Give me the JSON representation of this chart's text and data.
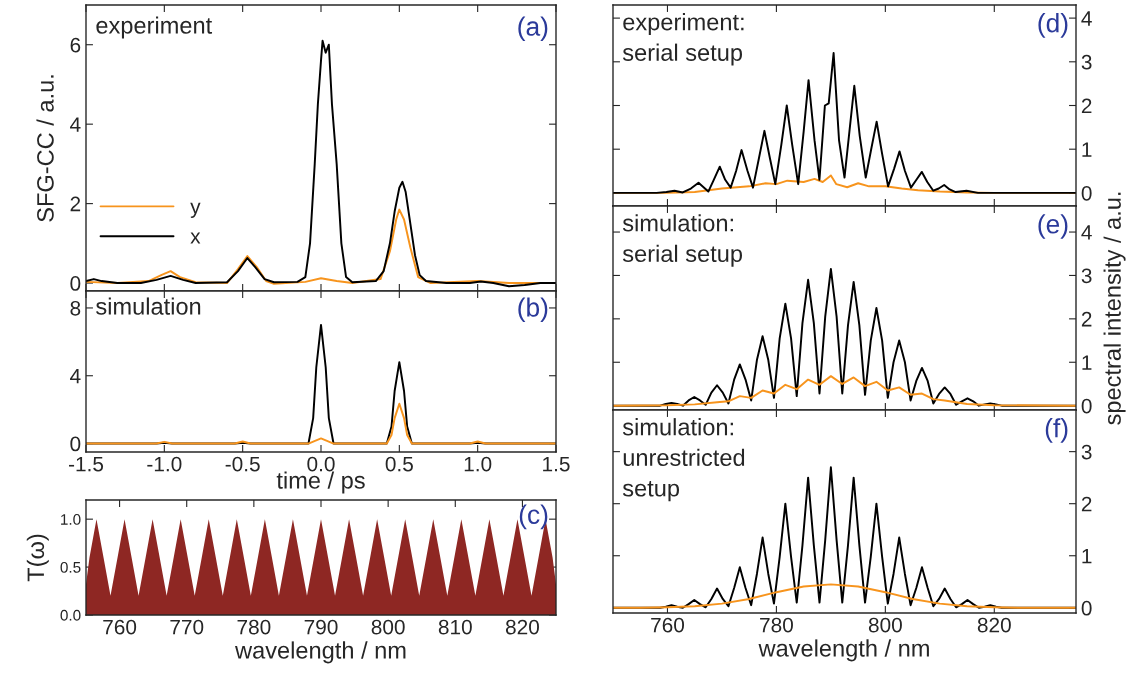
{
  "chart_data": [
    {
      "type": "line",
      "ylabel": "SFG-CC / a.u.",
      "annotations": [
        "experiment",
        "(a)"
      ],
      "xlim": [
        -1.5,
        1.5
      ],
      "xticks": [
        -1.5,
        -1.0,
        -0.5,
        0.0,
        0.5,
        1.0,
        1.5
      ],
      "ylim": [
        -0.2,
        7
      ],
      "yticks": [
        0,
        2,
        4,
        6
      ],
      "tick_labels": "y",
      "legend": "lower left",
      "series": [
        {
          "name": "y",
          "color": "#f7941d",
          "x": [
            -1.5,
            -1.3,
            -1.1,
            -1.02,
            -0.96,
            -0.9,
            -0.8,
            -0.6,
            -0.53,
            -0.47,
            -0.41,
            -0.35,
            -0.3,
            -0.1,
            0.0,
            0.1,
            0.2,
            0.38,
            0.44,
            0.48,
            0.5,
            0.53,
            0.57,
            0.62,
            0.7,
            1.0,
            1.2,
            1.5
          ],
          "values": [
            0.03,
            0.0,
            0.05,
            0.2,
            0.3,
            0.15,
            0.02,
            0.0,
            0.35,
            0.68,
            0.4,
            0.05,
            -0.02,
            0.03,
            0.12,
            0.05,
            0.0,
            0.1,
            0.8,
            1.6,
            1.85,
            1.6,
            0.9,
            0.15,
            0.0,
            0.05,
            0.0,
            0.0
          ]
        },
        {
          "name": "x",
          "color": "#000000",
          "x": [
            -1.5,
            -1.45,
            -1.4,
            -1.3,
            -1.15,
            -1.05,
            -0.96,
            -0.88,
            -0.8,
            -0.6,
            -0.53,
            -0.47,
            -0.42,
            -0.36,
            -0.3,
            -0.15,
            -0.1,
            -0.07,
            -0.04,
            -0.02,
            0.0,
            0.01,
            0.03,
            0.05,
            0.07,
            0.1,
            0.13,
            0.16,
            0.2,
            0.35,
            0.4,
            0.44,
            0.47,
            0.5,
            0.52,
            0.54,
            0.57,
            0.6,
            0.63,
            0.67,
            0.8,
            0.95,
            1.02,
            1.1,
            1.2,
            1.3,
            1.4,
            1.5
          ],
          "values": [
            0.05,
            0.1,
            0.05,
            0.0,
            0.0,
            0.08,
            0.18,
            0.08,
            0.0,
            0.02,
            0.3,
            0.63,
            0.4,
            0.1,
            0.02,
            0.03,
            0.15,
            1.0,
            3.0,
            4.5,
            5.6,
            6.1,
            5.8,
            6.0,
            4.5,
            3.0,
            1.0,
            0.15,
            0.02,
            0.05,
            0.3,
            1.0,
            1.8,
            2.4,
            2.55,
            2.3,
            1.5,
            0.7,
            0.2,
            0.05,
            0.0,
            0.0,
            0.04,
            0.0,
            -0.08,
            -0.05,
            0.0,
            0.0
          ]
        }
      ]
    },
    {
      "type": "line",
      "xlabel": "time / ps",
      "annotations": [
        "simulation",
        "(b)"
      ],
      "xlim": [
        -1.5,
        1.5
      ],
      "xticks": [
        -1.5,
        {
          "value": -1.0,
          "label": "-1.0"
        },
        -0.5,
        {
          "value": 0.0,
          "label": "0.0"
        },
        0.5,
        {
          "value": 1.0,
          "label": "1.0"
        },
        1.5
      ],
      "ylim": [
        -0.5,
        9
      ],
      "yticks": [
        0,
        4,
        8
      ],
      "series": [
        {
          "color": "#000000",
          "x": [
            -1.5,
            -1.05,
            -1.0,
            -0.95,
            -0.55,
            -0.5,
            -0.45,
            -0.08,
            -0.05,
            -0.03,
            0.0,
            0.03,
            0.05,
            0.08,
            0.42,
            0.45,
            0.47,
            0.5,
            0.53,
            0.55,
            0.58,
            0.95,
            1.0,
            1.05,
            1.5
          ],
          "values": [
            0,
            0,
            0.05,
            0,
            0,
            0.05,
            0,
            0,
            1.5,
            4.5,
            7.0,
            4.5,
            1.5,
            0,
            0,
            1.0,
            3.1,
            4.8,
            3.1,
            1.0,
            0,
            0,
            0.05,
            0,
            0
          ]
        },
        {
          "color": "#f7941d",
          "x": [
            -1.5,
            -1.05,
            -1.0,
            -0.95,
            -0.55,
            -0.5,
            -0.45,
            -0.08,
            0.0,
            0.08,
            0.42,
            0.45,
            0.47,
            0.5,
            0.53,
            0.55,
            0.58,
            0.95,
            1.0,
            1.05,
            1.5
          ],
          "values": [
            0,
            0,
            0.1,
            0,
            0,
            0.12,
            0,
            0,
            0.3,
            0,
            0,
            0.5,
            1.5,
            2.35,
            1.5,
            0.5,
            0,
            0,
            0.12,
            0,
            0
          ]
        }
      ]
    },
    {
      "type": "area",
      "xlabel": "wavelength / nm",
      "ylabel": "T(ω)",
      "annotations": [
        "(c)"
      ],
      "xlim": [
        755,
        825
      ],
      "xticks": [
        760,
        770,
        780,
        790,
        800,
        810,
        820
      ],
      "ylim": [
        0,
        1.2
      ],
      "yticks": [
        {
          "value": 0,
          "label": "0.0"
        },
        {
          "value": 0.5,
          "label": "0.5"
        },
        {
          "value": 1,
          "label": "1.0"
        }
      ],
      "series": [
        {
          "color": "#8e2723",
          "x": [
            755.0,
            755.52,
            756.56,
            757.61,
            758.65,
            759.7,
            760.74,
            761.79,
            762.83,
            763.88,
            764.92,
            765.97,
            767.01,
            768.06,
            769.1,
            770.15,
            771.19,
            772.24,
            773.28,
            774.33,
            775.37,
            776.42,
            777.46,
            778.51,
            779.55,
            780.6,
            781.64,
            782.69,
            783.73,
            784.78,
            785.82,
            786.87,
            787.91,
            788.96,
            790.0,
            791.05,
            792.09,
            793.14,
            794.18,
            795.23,
            796.27,
            797.32,
            798.36,
            799.41,
            800.45,
            801.5,
            802.54,
            803.59,
            804.63,
            805.68,
            806.72,
            807.77,
            808.81,
            809.86,
            810.9,
            811.95,
            812.99,
            814.04,
            815.08,
            816.13,
            817.17,
            818.22,
            819.26,
            820.31,
            821.35,
            822.4,
            823.44,
            824.49,
            825.0
          ],
          "values": [
            0.32,
            0.6,
            1.0,
            0.6,
            0.2,
            0.6,
            1.0,
            0.6,
            0.2,
            0.6,
            1.0,
            0.6,
            0.2,
            0.6,
            1.0,
            0.6,
            0.2,
            0.6,
            1.0,
            0.6,
            0.2,
            0.6,
            1.0,
            0.6,
            0.2,
            0.6,
            1.0,
            0.6,
            0.2,
            0.6,
            1.0,
            0.6,
            0.2,
            0.6,
            1.0,
            0.6,
            0.2,
            0.6,
            1.0,
            0.6,
            0.2,
            0.6,
            1.0,
            0.6,
            0.2,
            0.6,
            1.0,
            0.6,
            0.2,
            0.6,
            1.0,
            0.6,
            0.2,
            0.6,
            1.0,
            0.6,
            0.2,
            0.6,
            1.0,
            0.6,
            0.2,
            0.6,
            1.0,
            0.6,
            0.2,
            0.6,
            1.0,
            0.6,
            0.32
          ]
        }
      ]
    },
    {
      "type": "line",
      "annotations": [
        "experiment:\nserial setup",
        "(d)"
      ],
      "xlim": [
        750,
        835
      ],
      "xticks": [
        760,
        780,
        800,
        820
      ],
      "ylim": [
        -0.3,
        4.3
      ],
      "yticks": [
        0,
        1,
        2,
        3,
        4
      ],
      "tick_labels": "y",
      "series": [
        {
          "color": "#f7941d",
          "x": [
            750,
            760,
            765,
            770,
            775,
            778,
            780,
            782,
            785,
            787,
            788.5,
            790,
            791,
            793,
            795,
            797,
            800,
            803,
            806,
            810,
            815,
            820,
            835
          ],
          "values": [
            0,
            0,
            0.02,
            0.1,
            0.15,
            0.22,
            0.2,
            0.28,
            0.25,
            0.32,
            0.25,
            0.4,
            0.2,
            0.13,
            0.22,
            0.15,
            0.15,
            0.1,
            0.06,
            0.03,
            0.01,
            0,
            0
          ]
        },
        {
          "color": "#000000",
          "x": [
            750,
            758,
            759.8,
            761.3,
            762.8,
            764.3,
            765.7,
            767.5,
            768.5,
            769.6,
            770.6,
            771.6,
            772.6,
            773.6,
            774.7,
            775.7,
            776.8,
            777.8,
            778.8,
            779.8,
            780.9,
            781.9,
            782.9,
            784.0,
            785.0,
            785.9,
            787.0,
            787.9,
            788.9,
            789.6,
            790.5,
            791.5,
            792.5,
            793.4,
            794.3,
            795.3,
            796.4,
            797.4,
            798.4,
            799.4,
            800.5,
            801.6,
            802.6,
            803.6,
            804.7,
            805.7,
            806.7,
            807.7,
            808.8,
            809.8,
            810.8,
            811.8,
            812.9,
            814.9,
            817,
            835
          ],
          "values": [
            0,
            0,
            0.02,
            0.05,
            0.01,
            0.1,
            0.23,
            0.03,
            0.3,
            0.6,
            0.3,
            0.12,
            0.5,
            0.98,
            0.5,
            0.12,
            0.8,
            1.42,
            0.8,
            0.2,
            1.1,
            2.0,
            1.1,
            0.2,
            1.4,
            2.58,
            1.2,
            0.3,
            2.0,
            2.05,
            3.2,
            1.2,
            0.35,
            1.4,
            2.45,
            1.3,
            0.35,
            1.0,
            1.63,
            0.9,
            0.15,
            0.55,
            0.95,
            0.5,
            0.12,
            0.3,
            0.48,
            0.25,
            0.05,
            0.1,
            0.18,
            0.08,
            0.02,
            0.05,
            0,
            0
          ]
        }
      ]
    },
    {
      "type": "line",
      "ylabel": "spectral intensity / a.u.",
      "annotations": [
        "simulation:\nserial setup",
        "(e)"
      ],
      "xlim": [
        750,
        835
      ],
      "xticks": [
        760,
        780,
        800,
        820
      ],
      "ylim": [
        -0.1,
        4.6
      ],
      "yticks": [
        0,
        1,
        2,
        3,
        4
      ],
      "tick_labels": "y",
      "series": [
        {
          "color": "#000000",
          "x": [
            750,
            758.65,
            759.7,
            760.74,
            761.79,
            762.83,
            763.88,
            764.92,
            765.97,
            767.01,
            768.06,
            769.1,
            770.15,
            771.19,
            772.24,
            773.28,
            774.33,
            775.37,
            776.42,
            777.46,
            778.51,
            779.55,
            780.6,
            781.64,
            782.69,
            783.73,
            784.78,
            785.82,
            786.87,
            787.91,
            788.96,
            790.0,
            791.05,
            792.09,
            793.14,
            794.18,
            795.23,
            796.27,
            797.32,
            798.36,
            799.41,
            800.45,
            801.5,
            802.54,
            803.59,
            804.63,
            805.68,
            806.72,
            807.77,
            808.81,
            809.86,
            810.9,
            811.95,
            812.99,
            814.04,
            815.08,
            816.13,
            817.17,
            818.22,
            819.26,
            820.31,
            821.35,
            835
          ],
          "values": [
            0,
            0,
            0.04,
            0.06,
            0.04,
            0,
            0.12,
            0.2,
            0.12,
            0.02,
            0.3,
            0.47,
            0.3,
            0.05,
            0.6,
            0.95,
            0.6,
            0.12,
            1.05,
            1.6,
            1.05,
            0.18,
            1.55,
            2.35,
            1.55,
            0.22,
            1.9,
            2.9,
            1.9,
            0.28,
            2.05,
            3.15,
            2.05,
            0.28,
            1.85,
            2.85,
            1.85,
            0.25,
            1.5,
            2.25,
            1.5,
            0.18,
            1.0,
            1.5,
            1.0,
            0.12,
            0.57,
            0.87,
            0.57,
            0.05,
            0.27,
            0.42,
            0.27,
            0.02,
            0.1,
            0.17,
            0.1,
            0,
            0.03,
            0.05,
            0.03,
            0,
            0
          ]
        },
        {
          "color": "#f7941d",
          "x": [
            750,
            760,
            765,
            769.1,
            771.19,
            773.28,
            775.37,
            777.46,
            779.55,
            781.64,
            783.73,
            785.82,
            787.91,
            790.0,
            792.09,
            794.18,
            796.27,
            798.36,
            800.45,
            802.54,
            804.63,
            806.72,
            808.81,
            810.9,
            815,
            820,
            835
          ],
          "values": [
            0,
            0.01,
            0.03,
            0.08,
            0.1,
            0.22,
            0.18,
            0.35,
            0.28,
            0.48,
            0.38,
            0.6,
            0.48,
            0.68,
            0.5,
            0.65,
            0.45,
            0.55,
            0.35,
            0.42,
            0.25,
            0.28,
            0.15,
            0.12,
            0.04,
            0.01,
            0
          ]
        }
      ]
    },
    {
      "type": "line",
      "xlabel": "wavelength / nm",
      "annotations": [
        "simulation:\nunrestricted\nsetup",
        "(f)"
      ],
      "xlim": [
        750,
        835
      ],
      "xticks": [
        760,
        780,
        800,
        820
      ],
      "ylim": [
        -0.1,
        3.8
      ],
      "yticks": [
        0,
        1,
        2,
        3
      ],
      "series": [
        {
          "color": "#000000",
          "x": [
            750,
            758.65,
            759.7,
            760.74,
            761.79,
            762.83,
            763.88,
            764.92,
            765.97,
            767.01,
            768.06,
            769.1,
            770.15,
            771.19,
            772.24,
            773.28,
            774.33,
            775.37,
            776.42,
            777.46,
            778.51,
            779.55,
            780.6,
            781.64,
            782.69,
            783.73,
            784.78,
            785.82,
            786.87,
            787.91,
            788.96,
            790.0,
            791.05,
            792.09,
            793.14,
            794.18,
            795.23,
            796.27,
            797.32,
            798.36,
            799.41,
            800.45,
            801.5,
            802.54,
            803.59,
            804.63,
            805.68,
            806.72,
            807.77,
            808.81,
            809.86,
            810.9,
            811.95,
            812.99,
            814.04,
            815.08,
            816.13,
            817.17,
            818.22,
            819.26,
            820.31,
            821.35,
            835
          ],
          "values": [
            0,
            0,
            0.02,
            0.05,
            0.02,
            0,
            0.07,
            0.15,
            0.07,
            0.01,
            0.17,
            0.37,
            0.17,
            0.03,
            0.38,
            0.78,
            0.38,
            0.05,
            0.65,
            1.35,
            0.65,
            0.08,
            0.98,
            2.0,
            0.98,
            0.1,
            1.2,
            2.5,
            1.2,
            0.1,
            1.3,
            2.7,
            1.3,
            0.1,
            1.2,
            2.5,
            1.2,
            0.1,
            0.98,
            2.0,
            0.98,
            0.08,
            0.65,
            1.35,
            0.65,
            0.05,
            0.38,
            0.78,
            0.38,
            0.03,
            0.17,
            0.37,
            0.17,
            0.01,
            0.07,
            0.15,
            0.07,
            0,
            0.02,
            0.05,
            0.02,
            0,
            0
          ]
        },
        {
          "color": "#f7941d",
          "x": [
            750,
            755,
            760,
            765,
            770,
            775,
            780,
            785,
            790,
            795,
            800,
            805,
            810,
            815,
            820,
            825,
            830,
            835
          ],
          "values": [
            0,
            0,
            0.01,
            0.03,
            0.08,
            0.17,
            0.3,
            0.41,
            0.45,
            0.41,
            0.3,
            0.17,
            0.08,
            0.03,
            0.01,
            0,
            0,
            0
          ]
        }
      ]
    }
  ]
}
